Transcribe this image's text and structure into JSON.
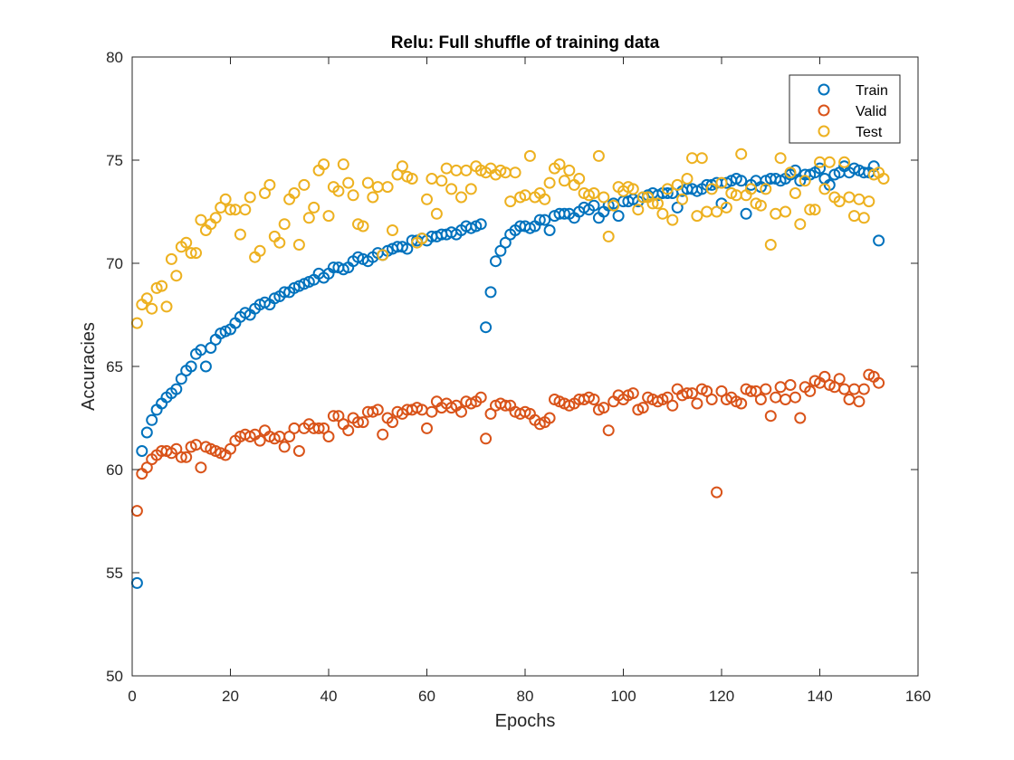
{
  "chart_data": {
    "type": "scatter",
    "title": "Relu: Full shuffle of training data",
    "xlabel": "Epochs",
    "ylabel": "Accuracies",
    "xlim": [
      0,
      160
    ],
    "ylim": [
      50,
      80
    ],
    "xticks": [
      0,
      20,
      40,
      60,
      80,
      100,
      120,
      140,
      160
    ],
    "yticks": [
      50,
      55,
      60,
      65,
      70,
      75,
      80
    ],
    "grid": false,
    "legend_position": "top-right",
    "series": [
      {
        "name": "Train",
        "color": "#0072BD",
        "values": [
          54.5,
          60.9,
          61.8,
          62.4,
          62.9,
          63.2,
          63.5,
          63.7,
          63.9,
          64.4,
          64.8,
          65.0,
          65.6,
          65.8,
          65.0,
          65.9,
          66.3,
          66.6,
          66.7,
          66.8,
          67.1,
          67.4,
          67.6,
          67.5,
          67.8,
          68.0,
          68.1,
          68.0,
          68.3,
          68.4,
          68.6,
          68.6,
          68.8,
          68.9,
          69.0,
          69.1,
          69.2,
          69.5,
          69.3,
          69.5,
          69.8,
          69.8,
          69.7,
          69.8,
          70.1,
          70.3,
          70.2,
          70.1,
          70.3,
          70.5,
          70.4,
          70.6,
          70.7,
          70.8,
          70.8,
          70.7,
          71.1,
          71.1,
          71.2,
          71.1,
          71.3,
          71.3,
          71.4,
          71.4,
          71.5,
          71.4,
          71.6,
          71.8,
          71.7,
          71.8,
          71.9,
          66.9,
          68.6,
          70.1,
          70.6,
          71.0,
          71.4,
          71.6,
          71.8,
          71.8,
          71.7,
          71.8,
          72.1,
          72.1,
          71.6,
          72.3,
          72.4,
          72.4,
          72.4,
          72.2,
          72.5,
          72.7,
          72.6,
          72.8,
          72.2,
          72.5,
          72.8,
          72.9,
          72.3,
          73.0,
          73.0,
          73.1,
          73.0,
          73.2,
          73.3,
          73.4,
          73.3,
          73.4,
          73.4,
          73.4,
          72.7,
          73.5,
          73.6,
          73.6,
          73.5,
          73.6,
          73.8,
          73.8,
          73.9,
          72.9,
          73.9,
          74.0,
          74.1,
          74.0,
          72.4,
          73.8,
          74.0,
          73.7,
          74.0,
          74.1,
          74.1,
          74.0,
          74.1,
          74.3,
          74.5,
          74.0,
          74.3,
          74.3,
          74.4,
          74.6,
          74.1,
          73.8,
          74.3,
          74.4,
          74.7,
          74.4,
          74.6,
          74.5,
          74.4,
          74.4,
          74.7,
          71.1
        ]
      },
      {
        "name": "Valid",
        "color": "#D95319",
        "values": [
          58.0,
          59.8,
          60.1,
          60.5,
          60.7,
          60.9,
          60.9,
          60.8,
          61.0,
          60.6,
          60.6,
          61.1,
          61.2,
          60.1,
          61.1,
          61.0,
          60.9,
          60.8,
          60.7,
          61.0,
          61.4,
          61.6,
          61.7,
          61.6,
          61.7,
          61.4,
          61.9,
          61.6,
          61.5,
          61.6,
          61.1,
          61.6,
          62.0,
          60.9,
          62.0,
          62.2,
          62.0,
          62.0,
          62.0,
          61.6,
          62.6,
          62.6,
          62.2,
          61.9,
          62.5,
          62.3,
          62.3,
          62.8,
          62.8,
          62.9,
          61.7,
          62.5,
          62.3,
          62.8,
          62.7,
          62.9,
          62.9,
          63.0,
          62.9,
          62.0,
          62.8,
          63.3,
          63.0,
          63.2,
          63.0,
          63.1,
          62.8,
          63.3,
          63.2,
          63.3,
          63.5,
          61.5,
          62.7,
          63.1,
          63.2,
          63.1,
          63.1,
          62.8,
          62.7,
          62.8,
          62.7,
          62.4,
          62.2,
          62.3,
          62.5,
          63.4,
          63.3,
          63.2,
          63.1,
          63.2,
          63.4,
          63.4,
          63.5,
          63.4,
          62.9,
          63.0,
          61.9,
          63.3,
          63.6,
          63.4,
          63.6,
          63.7,
          62.9,
          63.0,
          63.5,
          63.4,
          63.3,
          63.4,
          63.5,
          63.1,
          63.9,
          63.6,
          63.7,
          63.7,
          63.2,
          63.9,
          63.8,
          63.4,
          58.9,
          63.8,
          63.4,
          63.5,
          63.3,
          63.2,
          63.9,
          63.8,
          63.8,
          63.4,
          63.9,
          62.6,
          63.5,
          64.0,
          63.4,
          64.1,
          63.5,
          62.5,
          64.0,
          63.8,
          64.3,
          64.2,
          64.5,
          64.1,
          64.0,
          64.4,
          63.9,
          63.4,
          63.9,
          63.3,
          63.9,
          64.6,
          64.5,
          64.2
        ]
      },
      {
        "name": "Test",
        "color": "#EDB120",
        "values": [
          67.1,
          68.0,
          68.3,
          67.8,
          68.8,
          68.9,
          67.9,
          70.2,
          69.4,
          70.8,
          71.0,
          70.5,
          70.5,
          72.1,
          71.6,
          71.9,
          72.2,
          72.7,
          73.1,
          72.6,
          72.6,
          71.4,
          72.6,
          73.2,
          70.3,
          70.6,
          73.4,
          73.8,
          71.3,
          71.0,
          71.9,
          73.1,
          73.4,
          70.9,
          73.8,
          72.2,
          72.7,
          74.5,
          74.8,
          72.3,
          73.7,
          73.5,
          74.8,
          73.9,
          73.3,
          71.9,
          71.8,
          73.9,
          73.2,
          73.7,
          70.4,
          73.7,
          71.6,
          74.3,
          74.7,
          74.2,
          74.1,
          71.0,
          71.2,
          73.1,
          74.1,
          72.4,
          74.0,
          74.6,
          73.6,
          74.5,
          73.2,
          74.5,
          73.6,
          74.7,
          74.5,
          74.4,
          74.6,
          74.3,
          74.5,
          74.4,
          73.0,
          74.4,
          73.2,
          73.3,
          75.2,
          73.2,
          73.4,
          73.1,
          73.9,
          74.6,
          74.8,
          74.0,
          74.5,
          73.8,
          74.1,
          73.4,
          73.3,
          73.4,
          75.2,
          73.2,
          71.3,
          72.8,
          73.7,
          73.5,
          73.7,
          73.6,
          72.6,
          73.2,
          73.2,
          72.9,
          72.9,
          72.4,
          73.6,
          72.1,
          73.8,
          73.1,
          74.1,
          75.1,
          72.3,
          75.1,
          72.5,
          73.6,
          72.5,
          73.9,
          72.7,
          73.4,
          73.3,
          75.3,
          73.3,
          73.6,
          72.9,
          72.8,
          73.6,
          70.9,
          72.4,
          75.1,
          72.5,
          74.4,
          73.4,
          71.9,
          74.0,
          72.6,
          72.6,
          74.9,
          73.6,
          74.9,
          73.2,
          73.0,
          74.9,
          73.2,
          72.3,
          73.1,
          72.2,
          73.0,
          74.3,
          74.4,
          74.1
        ]
      }
    ],
    "x": [
      1,
      2,
      3,
      4,
      5,
      6,
      7,
      8,
      9,
      10,
      11,
      12,
      13,
      14,
      15,
      16,
      17,
      18,
      19,
      20,
      21,
      22,
      23,
      24,
      25,
      26,
      27,
      28,
      29,
      30,
      31,
      32,
      33,
      34,
      35,
      36,
      37,
      38,
      39,
      40,
      41,
      42,
      43,
      44,
      45,
      46,
      47,
      48,
      49,
      50,
      51,
      52,
      53,
      54,
      55,
      56,
      57,
      58,
      59,
      60,
      61,
      62,
      63,
      64,
      65,
      66,
      67,
      68,
      69,
      70,
      71,
      72,
      73,
      74,
      75,
      76,
      77,
      78,
      79,
      80,
      81,
      82,
      83,
      84,
      85,
      86,
      87,
      88,
      89,
      90,
      91,
      92,
      93,
      94,
      95,
      96,
      97,
      98,
      99,
      100,
      101,
      102,
      103,
      104,
      105,
      106,
      107,
      108,
      109,
      110,
      111,
      112,
      113,
      114,
      115,
      116,
      117,
      118,
      119,
      120,
      121,
      122,
      123,
      124,
      125,
      126,
      127,
      128,
      129,
      130,
      131,
      132,
      133,
      134,
      135,
      136,
      137,
      138,
      139,
      140,
      141,
      142,
      143,
      144,
      145,
      146,
      147,
      148,
      149,
      150,
      151,
      152,
      153,
      154
    ]
  }
}
